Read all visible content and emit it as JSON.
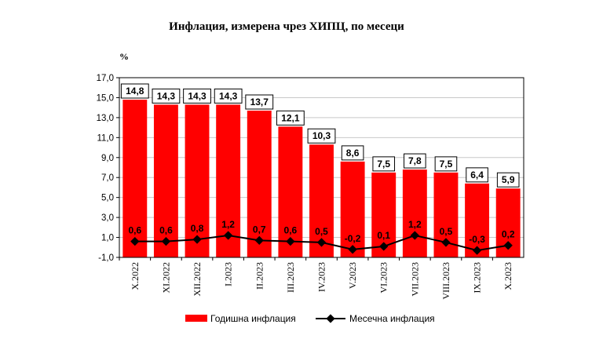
{
  "chart_data": {
    "type": "bar",
    "title": "Инфлация, измерена чрез ХИПЦ, по месеци",
    "ylabel": "%",
    "ylim": [
      -1.0,
      17.0
    ],
    "yticks": [
      "17,0",
      "15,0",
      "13,0",
      "11,0",
      "9,0",
      "7,0",
      "5,0",
      "3,0",
      "1,0",
      "-1,0"
    ],
    "ytick_values": [
      17,
      15,
      13,
      11,
      9,
      7,
      5,
      3,
      1,
      -1
    ],
    "grid": true,
    "legend_position": "bottom",
    "categories": [
      "X.2022",
      "XI.2022",
      "XII.2022",
      "I.2023",
      "II.2023",
      "III.2023",
      "IV.2023",
      "V.2023",
      "VI.2023",
      "VII.2023",
      "VIII.2023",
      "IX.2023",
      "X.2023"
    ],
    "series": [
      {
        "name": "Годишна инфлация",
        "kind": "bar",
        "color": "#ff0000",
        "values": [
          14.8,
          14.3,
          14.3,
          14.3,
          13.7,
          12.1,
          10.3,
          8.6,
          7.5,
          7.8,
          7.5,
          6.4,
          5.9
        ],
        "labels": [
          "14,8",
          "14,3",
          "14,3",
          "14,3",
          "13,7",
          "12,1",
          "10,3",
          "8,6",
          "7,5",
          "7,8",
          "7,5",
          "6,4",
          "5,9"
        ]
      },
      {
        "name": "Месечна инфлация",
        "kind": "line",
        "color": "#000000",
        "values": [
          0.6,
          0.6,
          0.8,
          1.2,
          0.7,
          0.6,
          0.5,
          -0.2,
          0.1,
          1.2,
          0.5,
          -0.3,
          0.2
        ],
        "labels": [
          "0,6",
          "0,6",
          "0,8",
          "1,2",
          "0,7",
          "0,6",
          "0,5",
          "-0,2",
          "0,1",
          "1,2",
          "0,5",
          "-0,3",
          "0,2"
        ]
      }
    ]
  }
}
